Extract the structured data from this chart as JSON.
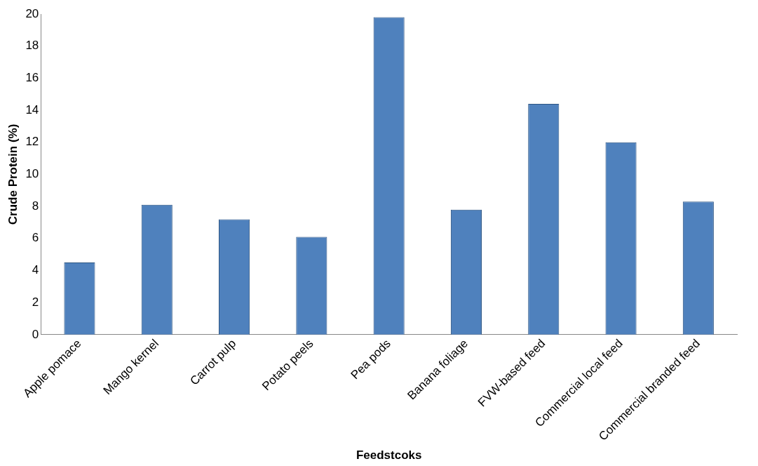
{
  "chart_data": {
    "type": "bar",
    "xlabel": "Feedstcoks",
    "ylabel": "Crude Protein (%)",
    "categories": [
      "Apple pomace",
      "Mango kernel",
      "Carrot pulp",
      "Potato peels",
      "Pea pods",
      "Banana foliage",
      "FVW-based feed",
      "Commercial local feed",
      "Commercial branded feed"
    ],
    "values": [
      4.5,
      8.1,
      7.2,
      6.1,
      19.8,
      7.8,
      14.4,
      12,
      8.3
    ],
    "color": "#4f81bd",
    "ylim": [
      0,
      20
    ],
    "yticks": [
      0,
      2,
      4,
      6,
      8,
      10,
      12,
      14,
      16,
      18,
      20
    ],
    "grid": false,
    "legend": false
  }
}
